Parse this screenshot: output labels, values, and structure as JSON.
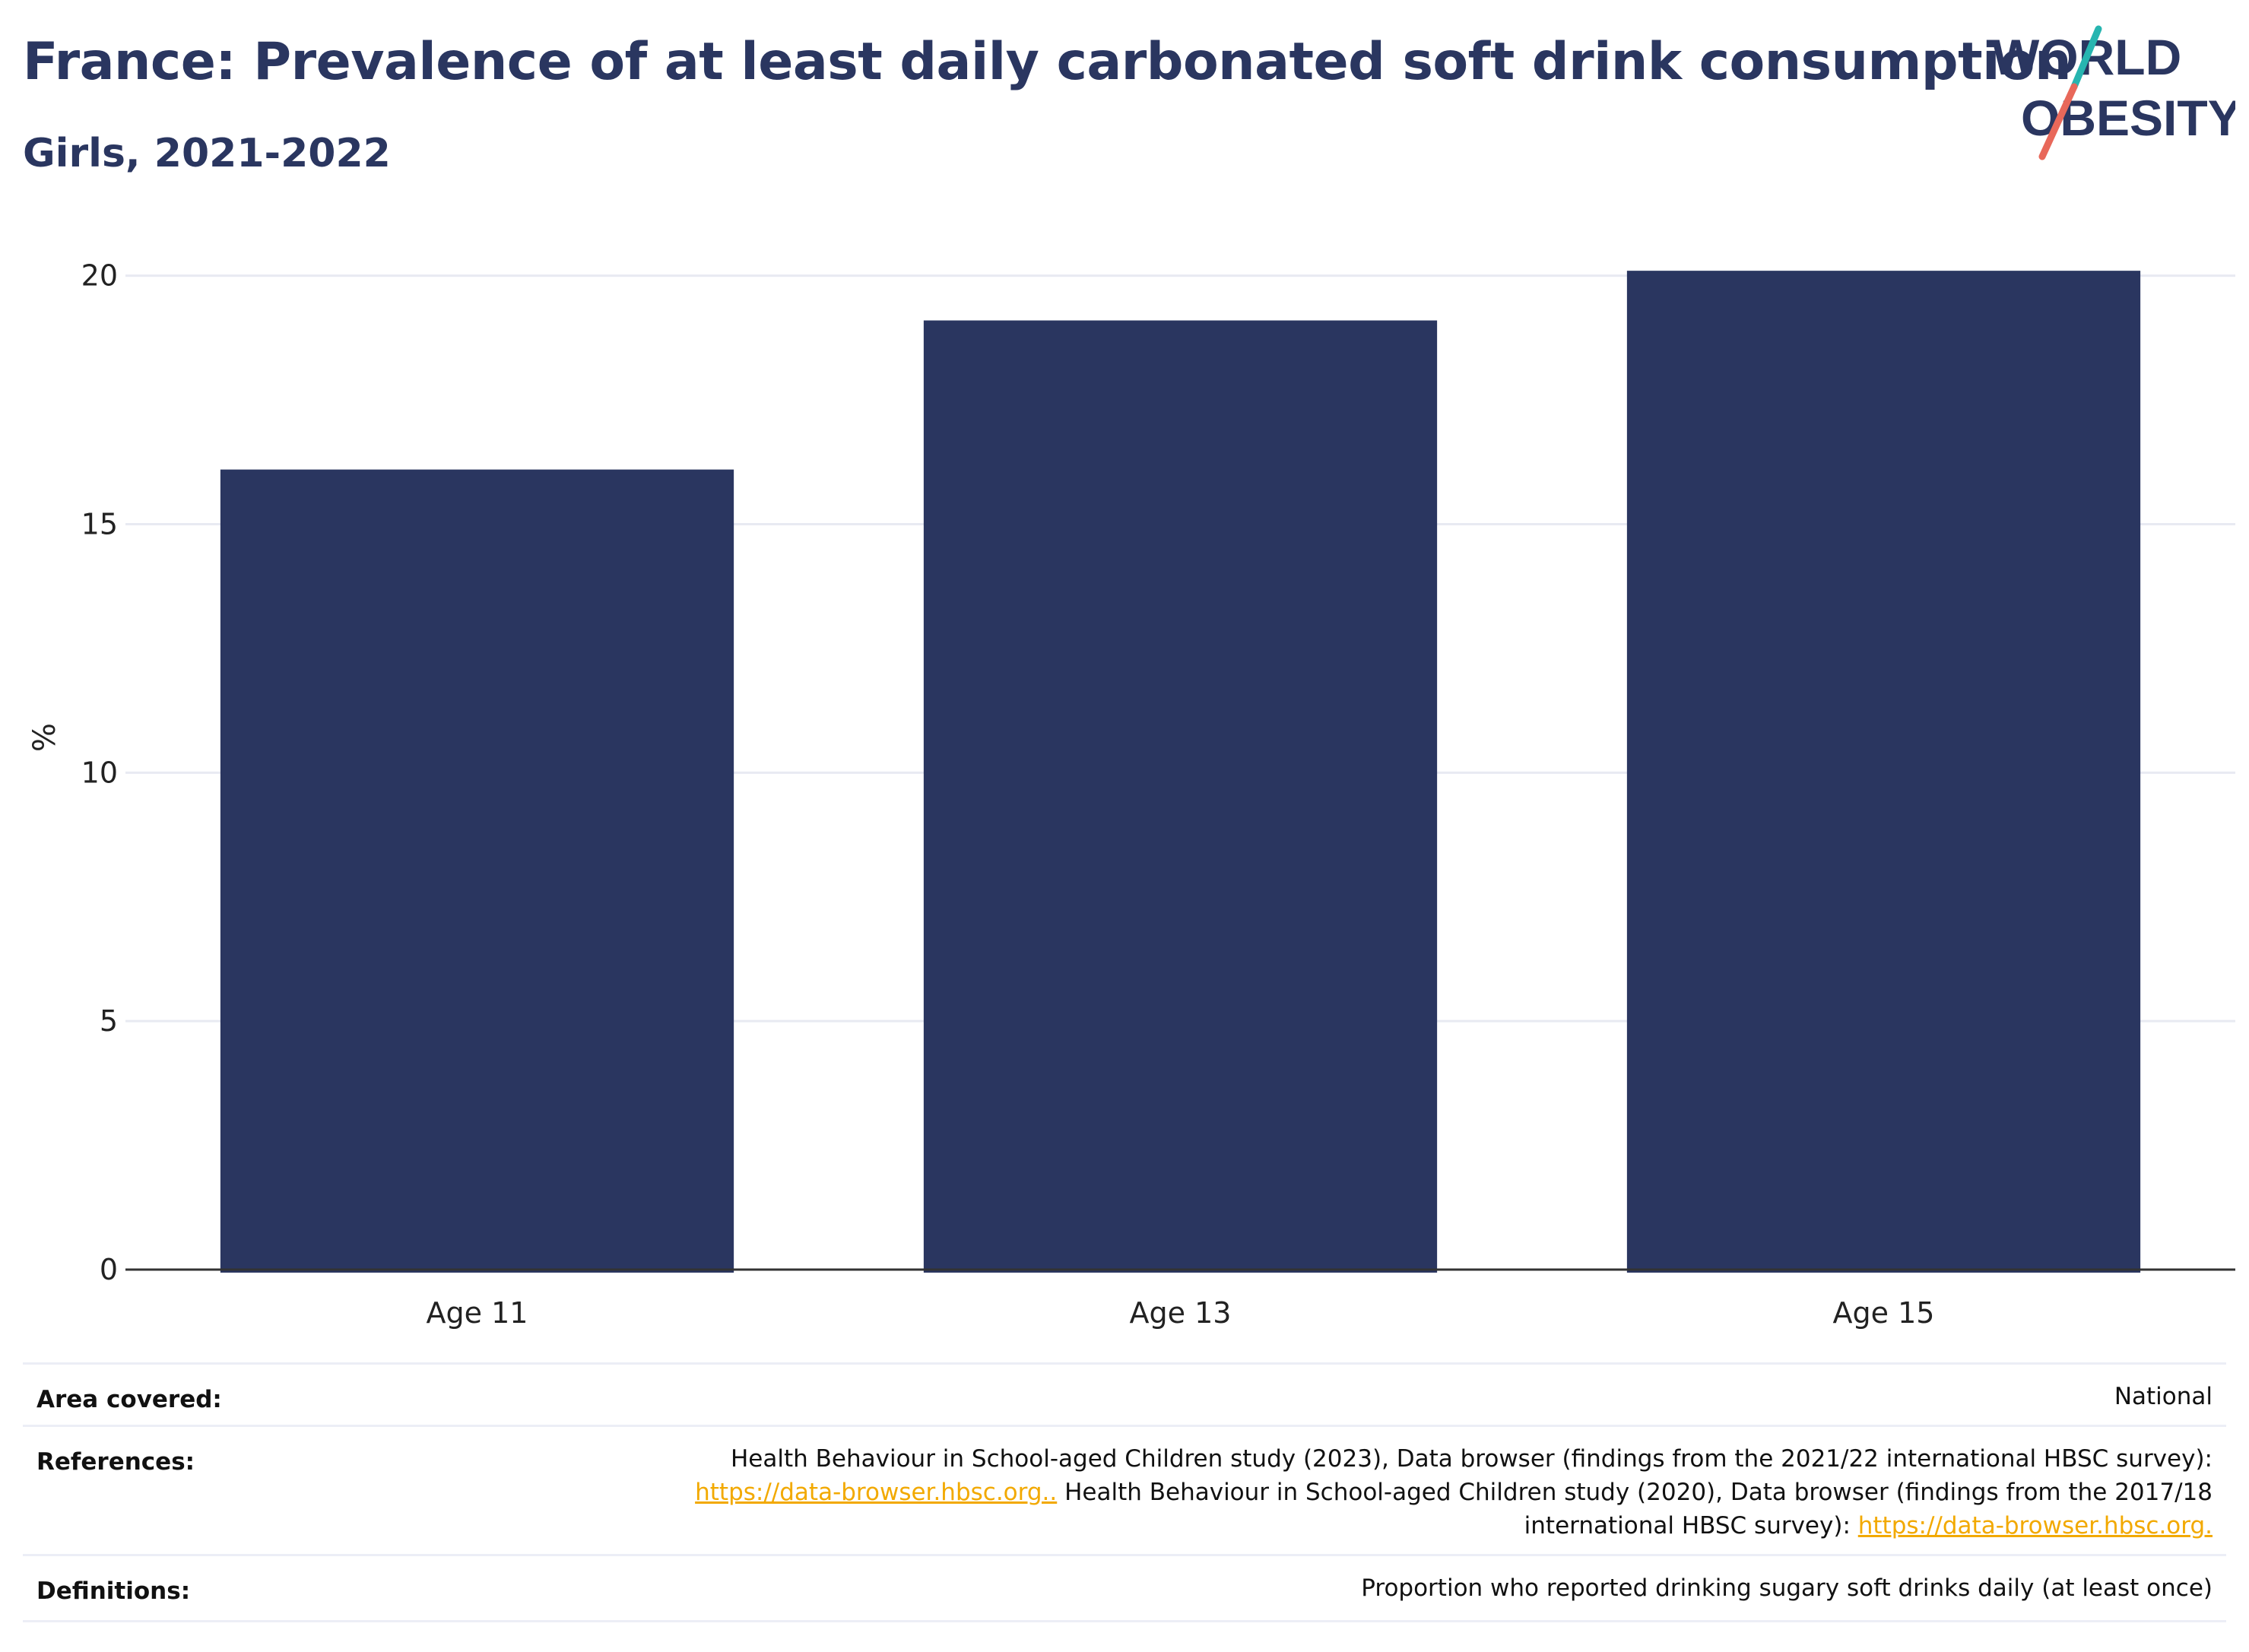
{
  "header": {
    "title": "France: Prevalence of at least daily carbonated soft drink consumption",
    "subtitle": "Girls, 2021-2022"
  },
  "logo": {
    "line1": "WORLD",
    "line2": "OBESITY",
    "colors": {
      "text": "#2a3660",
      "slash_top": "#27b5b0",
      "slash_bottom": "#e8685a"
    }
  },
  "chart_data": {
    "type": "bar",
    "categories": [
      "Age 11",
      "Age 13",
      "Age 15"
    ],
    "values": [
      16.1,
      19.1,
      20.1
    ],
    "title": "France: Prevalence of at least daily carbonated soft drink consumption",
    "subtitle": "Girls, 2021-2022",
    "xlabel": "",
    "ylabel": "%",
    "ylim": [
      0,
      20.5
    ],
    "yticks": [
      0,
      5,
      10,
      15,
      20
    ],
    "grid": true,
    "bar_color": "#2a3660",
    "grid_color": "#e8eaf2",
    "axis_color": "#333333"
  },
  "metadata": {
    "area_label": "Area covered:",
    "area_value": "National",
    "references_label": "References:",
    "references_line1": "Health Behaviour in School-aged Children study (2023), Data browser (findings from the 2021/22 international HBSC survey):",
    "references_link1": "https://data-browser.hbsc.org..",
    "references_line2_rest": " Health Behaviour in School-aged Children study (2020), Data browser (findings from the 2017/18",
    "references_line3": "international HBSC survey): ",
    "references_link2": "https://data-browser.hbsc.org.",
    "definitions_label": "Definitions:",
    "definitions_value": "Proportion who reported drinking sugary soft drinks daily (at least once)"
  }
}
